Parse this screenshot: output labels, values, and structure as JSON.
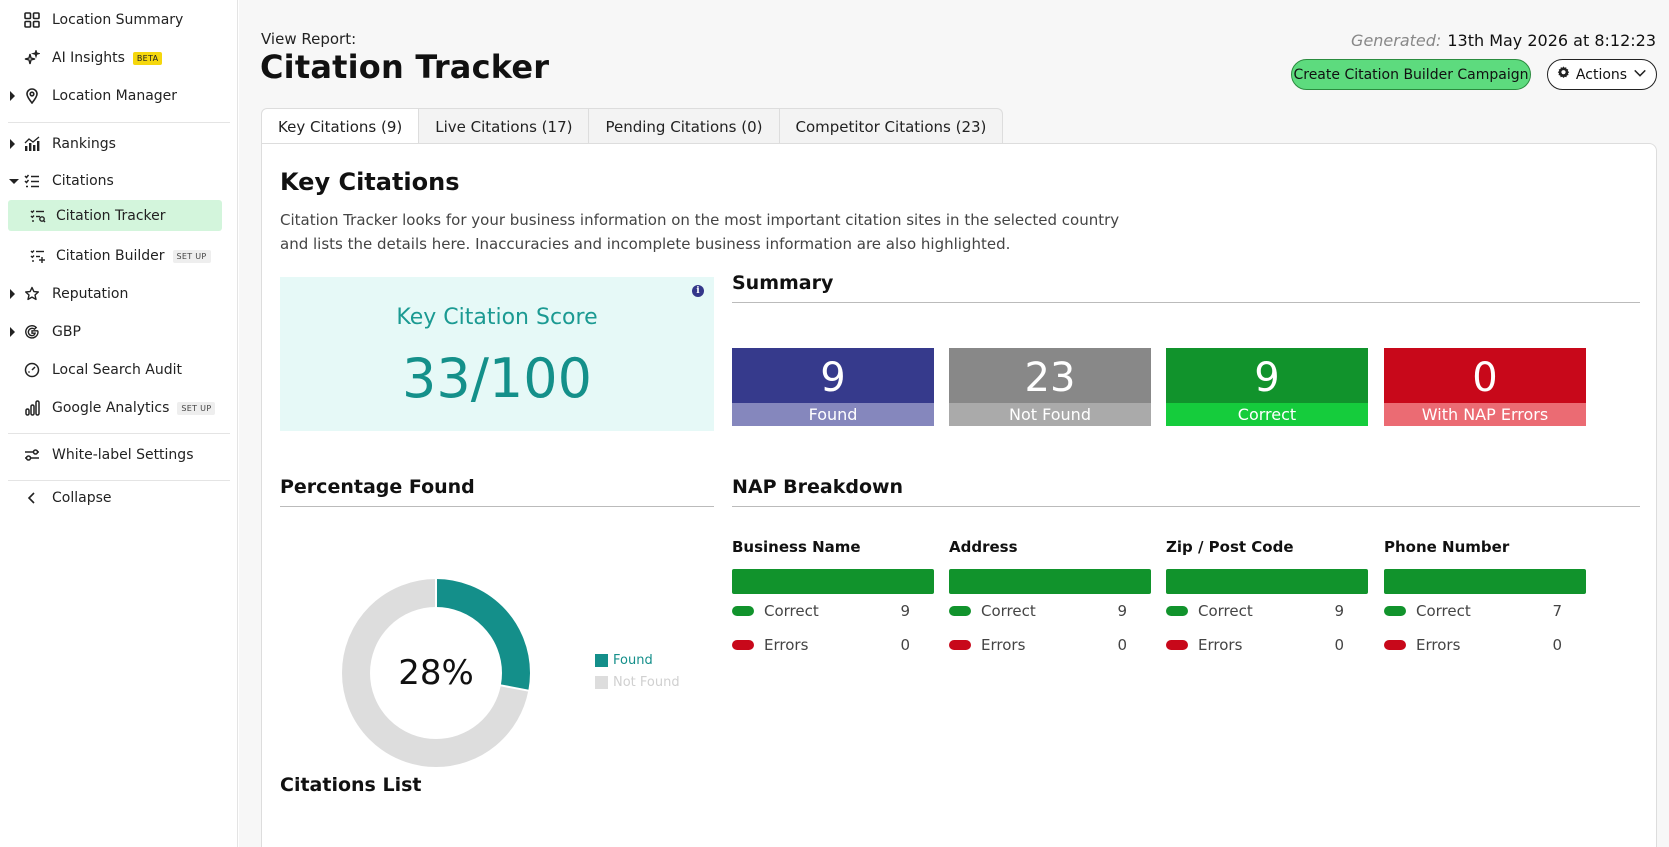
{
  "sidebar": {
    "items": [
      {
        "label": "Location Summary"
      },
      {
        "label": "AI Insights",
        "badge": "BETA"
      },
      {
        "label": "Location Manager"
      },
      {
        "label": "Rankings"
      },
      {
        "label": "Citations"
      },
      {
        "label": "Citation Tracker"
      },
      {
        "label": "Citation Builder",
        "badge": "SET UP"
      },
      {
        "label": "Reputation"
      },
      {
        "label": "GBP"
      },
      {
        "label": "Local Search Audit"
      },
      {
        "label": "Google Analytics",
        "badge": "SET UP"
      },
      {
        "label": "White-label Settings"
      },
      {
        "label": "Collapse"
      }
    ]
  },
  "header": {
    "view_report": "View Report:",
    "title": "Citation Tracker",
    "generated_label": "Generated:",
    "generated_value": "13th May 2026 at 8:12:23",
    "create_button": "Create Citation Builder Campaign",
    "actions_button": "Actions"
  },
  "tabs": [
    {
      "label": "Key Citations (9)",
      "active": true
    },
    {
      "label": "Live Citations (17)"
    },
    {
      "label": "Pending Citations (0)"
    },
    {
      "label": "Competitor Citations (23)"
    }
  ],
  "panel": {
    "title": "Key Citations",
    "description": "Citation Tracker looks for your business information on the most important citation sites in the selected country and lists the details here. Inaccuracies and incomplete business information are also highlighted.",
    "score_label": "Key Citation Score",
    "score_value": "33/100",
    "summary_title": "Summary",
    "summary": [
      {
        "value": "9",
        "label": "Found",
        "color": "#363a8c",
        "cap_color": "#8587bd"
      },
      {
        "value": "23",
        "label": "Not Found",
        "color": "#888888",
        "cap_color": "#aaaaaa"
      },
      {
        "value": "9",
        "label": "Correct",
        "color": "#11932c",
        "cap_color": "#15cc3c"
      },
      {
        "value": "0",
        "label": "With NAP Errors",
        "color": "#c8081a",
        "cap_color": "#eb6b73"
      }
    ],
    "percentage_title": "Percentage Found",
    "nap_title": "NAP Breakdown",
    "nap": [
      {
        "title": "Business Name",
        "correct_label": "Correct",
        "correct": "9",
        "errors_label": "Errors",
        "errors": "0"
      },
      {
        "title": "Address",
        "correct_label": "Correct",
        "correct": "9",
        "errors_label": "Errors",
        "errors": "0"
      },
      {
        "title": "Zip / Post Code",
        "correct_label": "Correct",
        "correct": "9",
        "errors_label": "Errors",
        "errors": "0"
      },
      {
        "title": "Phone Number",
        "correct_label": "Correct",
        "correct": "7",
        "errors_label": "Errors",
        "errors": "0"
      }
    ],
    "citations_list_title": "Citations List"
  },
  "chart_data": {
    "type": "pie",
    "categories": [
      "Found",
      "Not Found"
    ],
    "values": [
      28,
      72
    ],
    "center_label": "28%",
    "colors": [
      "#148f8a",
      "#dddddd"
    ],
    "legend_position": "right"
  },
  "colors": {
    "accent_green": "#5ddb7e",
    "active_nav": "#d3f5dc",
    "teal": "#14908a"
  }
}
